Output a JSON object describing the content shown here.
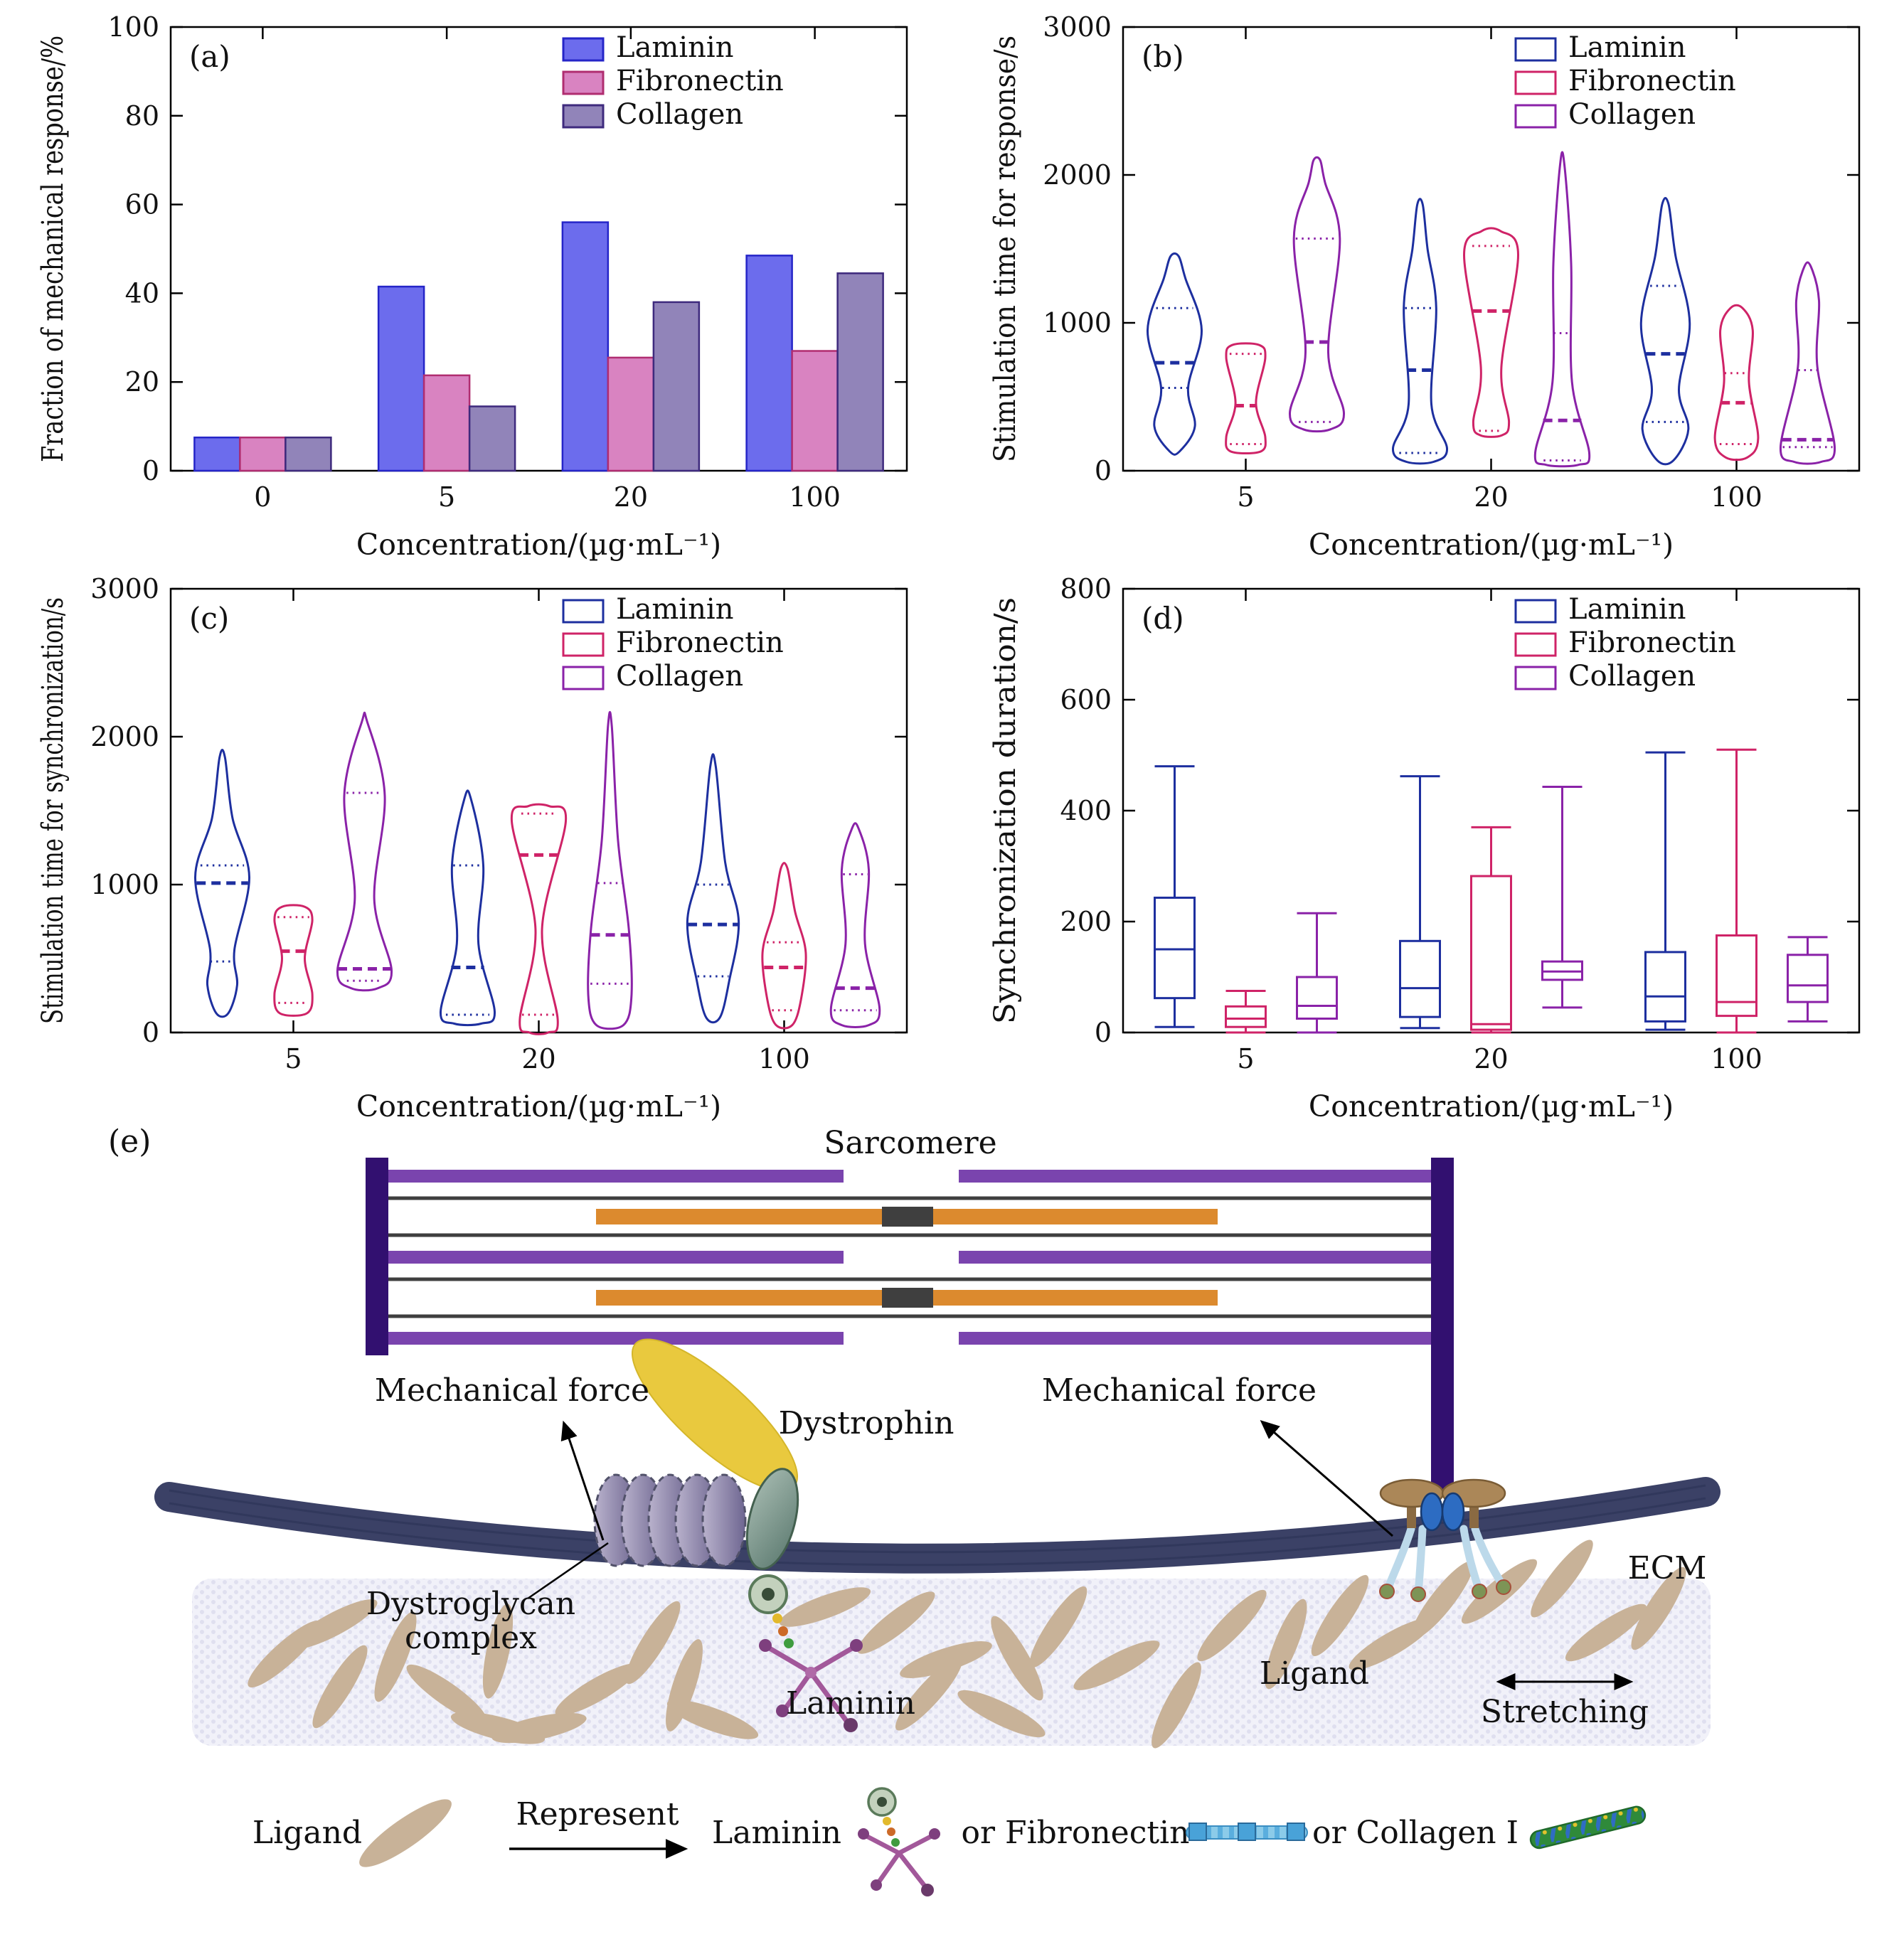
{
  "figure": {
    "background": "#ffffff",
    "panel_tags": [
      "(a)",
      "(b)",
      "(c)",
      "(d)",
      "(e)"
    ]
  },
  "series_colors": {
    "laminin_outline": "#1d2f9f",
    "fibronectin_outline": "#cf2367",
    "collagen_outline": "#8a22a8",
    "laminin_bar_fill": "#6c6ced",
    "fibronectin_bar_fill": "#d983c1",
    "collagen_bar_fill": "#9184b9"
  },
  "chart_data": [
    {
      "type": "bar",
      "tag": "(a)",
      "xlabel": "Concentration/(µg·mL⁻¹)",
      "ylabel": "Fraction of mechanical response/%",
      "ylim": [
        0,
        100
      ],
      "yticks": [
        0,
        20,
        40,
        60,
        80,
        100
      ],
      "categories": [
        "0",
        "5",
        "20",
        "100"
      ],
      "legend_position": "top-right",
      "series": [
        {
          "name": "Laminin",
          "fill": "#6c6ced",
          "stroke": "#2525c8",
          "values": [
            7.5,
            41.5,
            56,
            48.5
          ]
        },
        {
          "name": "Fibronectin",
          "fill": "#d983c1",
          "stroke": "#b02d70",
          "values": [
            7.5,
            21.5,
            25.5,
            27
          ]
        },
        {
          "name": "Collagen",
          "fill": "#9184b9",
          "stroke": "#3e2a7d",
          "values": [
            7.5,
            14.5,
            38,
            44.5
          ]
        }
      ]
    },
    {
      "type": "violin",
      "tag": "(b)",
      "xlabel": "Concentration/(µg·mL⁻¹)",
      "ylabel": "Stimulation time for response/s",
      "ylim": [
        0,
        3000
      ],
      "yticks": [
        0,
        1000,
        2000,
        3000
      ],
      "categories": [
        "5",
        "20",
        "100"
      ],
      "legend_position": "top-right",
      "series": [
        {
          "name": "Laminin",
          "color": "#1d2f9f",
          "violins": [
            {
              "min": 130,
              "q1": 560,
              "median": 730,
              "q3": 1100,
              "max": 1450,
              "profile": [
                [
                  130,
                  0.18
                ],
                [
                  300,
                  0.75
                ],
                [
                  560,
                  0.5
                ],
                [
                  950,
                  1.0
                ],
                [
                  1300,
                  0.4
                ],
                [
                  1450,
                  0.15
                ]
              ]
            },
            {
              "min": 60,
              "q1": 120,
              "median": 680,
              "q3": 1100,
              "max": 1800,
              "profile": [
                [
                  60,
                  0.5
                ],
                [
                  150,
                  1.0
                ],
                [
                  450,
                  0.42
                ],
                [
                  1100,
                  0.6
                ],
                [
                  1500,
                  0.28
                ],
                [
                  1800,
                  0.1
                ]
              ]
            },
            {
              "min": 70,
              "q1": 330,
              "median": 790,
              "q3": 1250,
              "max": 1800,
              "profile": [
                [
                  70,
                  0.3
                ],
                [
                  280,
                  0.85
                ],
                [
                  550,
                  0.5
                ],
                [
                  1000,
                  0.9
                ],
                [
                  1450,
                  0.38
                ],
                [
                  1800,
                  0.12
                ]
              ]
            }
          ]
        },
        {
          "name": "Fibronectin",
          "color": "#cf2367",
          "violins": [
            {
              "min": 130,
              "q1": 180,
              "median": 440,
              "q3": 790,
              "max": 850,
              "profile": [
                [
                  130,
                  0.55
                ],
                [
                  230,
                  0.72
                ],
                [
                  460,
                  0.38
                ],
                [
                  760,
                  0.72
                ],
                [
                  850,
                  0.5
                ]
              ]
            },
            {
              "min": 240,
              "q1": 270,
              "median": 1080,
              "q3": 1520,
              "max": 1620,
              "profile": [
                [
                  240,
                  0.4
                ],
                [
                  330,
                  0.66
                ],
                [
                  700,
                  0.38
                ],
                [
                  1460,
                  1.0
                ],
                [
                  1620,
                  0.35
                ]
              ]
            },
            {
              "min": 90,
              "q1": 180,
              "median": 460,
              "q3": 660,
              "max": 1100,
              "profile": [
                [
                  90,
                  0.4
                ],
                [
                  220,
                  0.8
                ],
                [
                  600,
                  0.46
                ],
                [
                  950,
                  0.6
                ],
                [
                  1100,
                  0.22
                ]
              ]
            }
          ]
        },
        {
          "name": "Collagen",
          "color": "#8a22a8",
          "violins": [
            {
              "min": 280,
              "q1": 330,
              "median": 870,
              "q3": 1570,
              "max": 2100,
              "profile": [
                [
                  280,
                  0.5
                ],
                [
                  390,
                  1.0
                ],
                [
                  800,
                  0.42
                ],
                [
                  1570,
                  0.85
                ],
                [
                  1950,
                  0.3
                ],
                [
                  2100,
                  0.12
                ]
              ]
            },
            {
              "min": 40,
              "q1": 70,
              "median": 340,
              "q3": 930,
              "max": 2070,
              "profile": [
                [
                  40,
                  0.6
                ],
                [
                  120,
                  1.0
                ],
                [
                  600,
                  0.36
                ],
                [
                  1400,
                  0.33
                ],
                [
                  2070,
                  0.08
                ]
              ]
            },
            {
              "min": 60,
              "q1": 160,
              "median": 210,
              "q3": 680,
              "max": 1380,
              "profile": [
                [
                  60,
                  0.5
                ],
                [
                  160,
                  1.0
                ],
                [
                  700,
                  0.36
                ],
                [
                  1150,
                  0.42
                ],
                [
                  1380,
                  0.12
                ]
              ]
            }
          ]
        }
      ]
    },
    {
      "type": "violin",
      "tag": "(c)",
      "xlabel": "Concentration/(µg·mL⁻¹)",
      "ylabel": "Stimulation time for synchronization/s",
      "ylim": [
        0,
        3000
      ],
      "yticks": [
        0,
        1000,
        2000,
        3000
      ],
      "categories": [
        "5",
        "20",
        "100"
      ],
      "legend_position": "top-right",
      "series": [
        {
          "name": "Laminin",
          "color": "#1d2f9f",
          "violins": [
            {
              "min": 130,
              "q1": 480,
              "median": 1010,
              "q3": 1130,
              "max": 1860,
              "profile": [
                [
                  130,
                  0.22
                ],
                [
                  320,
                  0.55
                ],
                [
                  560,
                  0.45
                ],
                [
                  1050,
                  1.0
                ],
                [
                  1450,
                  0.38
                ],
                [
                  1860,
                  0.1
                ]
              ]
            },
            {
              "min": 60,
              "q1": 120,
              "median": 440,
              "q3": 1130,
              "max": 1580,
              "profile": [
                [
                  60,
                  0.5
                ],
                [
                  140,
                  1.0
                ],
                [
                  600,
                  0.4
                ],
                [
                  1130,
                  0.58
                ],
                [
                  1580,
                  0.12
                ]
              ]
            },
            {
              "min": 100,
              "q1": 380,
              "median": 730,
              "q3": 1000,
              "max": 1800,
              "profile": [
                [
                  100,
                  0.25
                ],
                [
                  350,
                  0.6
                ],
                [
                  750,
                  0.95
                ],
                [
                  1150,
                  0.45
                ],
                [
                  1800,
                  0.1
                ]
              ]
            }
          ]
        },
        {
          "name": "Fibronectin",
          "color": "#cf2367",
          "violins": [
            {
              "min": 130,
              "q1": 200,
              "median": 550,
              "q3": 780,
              "max": 850,
              "profile": [
                [
                  130,
                  0.5
                ],
                [
                  260,
                  0.7
                ],
                [
                  500,
                  0.42
                ],
                [
                  760,
                  0.7
                ],
                [
                  850,
                  0.42
                ]
              ]
            },
            {
              "min": 0,
              "q1": 120,
              "median": 1200,
              "q3": 1480,
              "max": 1530,
              "profile": [
                [
                  0,
                  0.35
                ],
                [
                  90,
                  0.7
                ],
                [
                  700,
                  0.12
                ],
                [
                  1430,
                  1.0
                ],
                [
                  1530,
                  0.4
                ]
              ]
            },
            {
              "min": 50,
              "q1": 150,
              "median": 440,
              "q3": 610,
              "max": 1110,
              "profile": [
                [
                  50,
                  0.3
                ],
                [
                  220,
                  0.62
                ],
                [
                  540,
                  0.8
                ],
                [
                  820,
                  0.4
                ],
                [
                  1110,
                  0.12
                ]
              ]
            }
          ]
        },
        {
          "name": "Collagen",
          "color": "#8a22a8",
          "violins": [
            {
              "min": 300,
              "q1": 350,
              "median": 430,
              "q3": 1620,
              "max": 2100,
              "profile": [
                [
                  300,
                  0.5
                ],
                [
                  420,
                  1.0
                ],
                [
                  900,
                  0.36
                ],
                [
                  1600,
                  0.75
                ],
                [
                  2100,
                  0.1
                ]
              ]
            },
            {
              "min": 50,
              "q1": 330,
              "median": 660,
              "q3": 1010,
              "max": 2070,
              "profile": [
                [
                  50,
                  0.5
                ],
                [
                  250,
                  0.8
                ],
                [
                  700,
                  0.7
                ],
                [
                  1300,
                  0.3
                ],
                [
                  2070,
                  0.07
                ]
              ]
            },
            {
              "min": 50,
              "q1": 150,
              "median": 300,
              "q3": 1070,
              "max": 1380,
              "profile": [
                [
                  50,
                  0.5
                ],
                [
                  160,
                  0.9
                ],
                [
                  600,
                  0.36
                ],
                [
                  1100,
                  0.5
                ],
                [
                  1380,
                  0.12
                ]
              ]
            }
          ]
        }
      ]
    },
    {
      "type": "box",
      "tag": "(d)",
      "xlabel": "Concentration/(µg·mL⁻¹)",
      "ylabel": "Synchronization duration/s",
      "ylim": [
        0,
        800
      ],
      "yticks": [
        0,
        200,
        400,
        600,
        800
      ],
      "categories": [
        "5",
        "20",
        "100"
      ],
      "legend_position": "top-right",
      "series": [
        {
          "name": "Laminin",
          "color": "#1d2f9f",
          "boxes": [
            {
              "whislo": 10,
              "q1": 62,
              "median": 150,
              "q3": 243,
              "whishi": 480
            },
            {
              "whislo": 8,
              "q1": 28,
              "median": 80,
              "q3": 165,
              "whishi": 462
            },
            {
              "whislo": 5,
              "q1": 20,
              "median": 65,
              "q3": 145,
              "whishi": 505
            }
          ]
        },
        {
          "name": "Fibronectin",
          "color": "#cf2367",
          "boxes": [
            {
              "whislo": 0,
              "q1": 10,
              "median": 25,
              "q3": 47,
              "whishi": 75
            },
            {
              "whislo": 0,
              "q1": 5,
              "median": 15,
              "q3": 282,
              "whishi": 370
            },
            {
              "whislo": 0,
              "q1": 30,
              "median": 55,
              "q3": 175,
              "whishi": 510
            }
          ]
        },
        {
          "name": "Collagen",
          "color": "#8a22a8",
          "boxes": [
            {
              "whislo": 0,
              "q1": 25,
              "median": 48,
              "q3": 100,
              "whishi": 215
            },
            {
              "whislo": 45,
              "q1": 95,
              "median": 110,
              "q3": 128,
              "whishi": 443
            },
            {
              "whislo": 20,
              "q1": 55,
              "median": 85,
              "q3": 140,
              "whishi": 172
            }
          ]
        }
      ]
    }
  ],
  "diagram": {
    "tag": "(e)",
    "sarcomere": "Sarcomere",
    "mech_force_left": "Mechanical force",
    "mech_force_right": "Mechanical force",
    "dystrophin": "Dystrophin",
    "dystroglycan_line1": "Dystroglycan",
    "dystroglycan_line2": "complex",
    "ecm": "ECM",
    "laminin": "Laminin",
    "ligand": "Ligand",
    "stretching": "Stretching",
    "legend": {
      "ligand": "Ligand",
      "represent": "Represent",
      "laminin": "Laminin",
      "or_fibronectin": "or Fibronectin",
      "or_collagen": "or Collagen I"
    }
  }
}
